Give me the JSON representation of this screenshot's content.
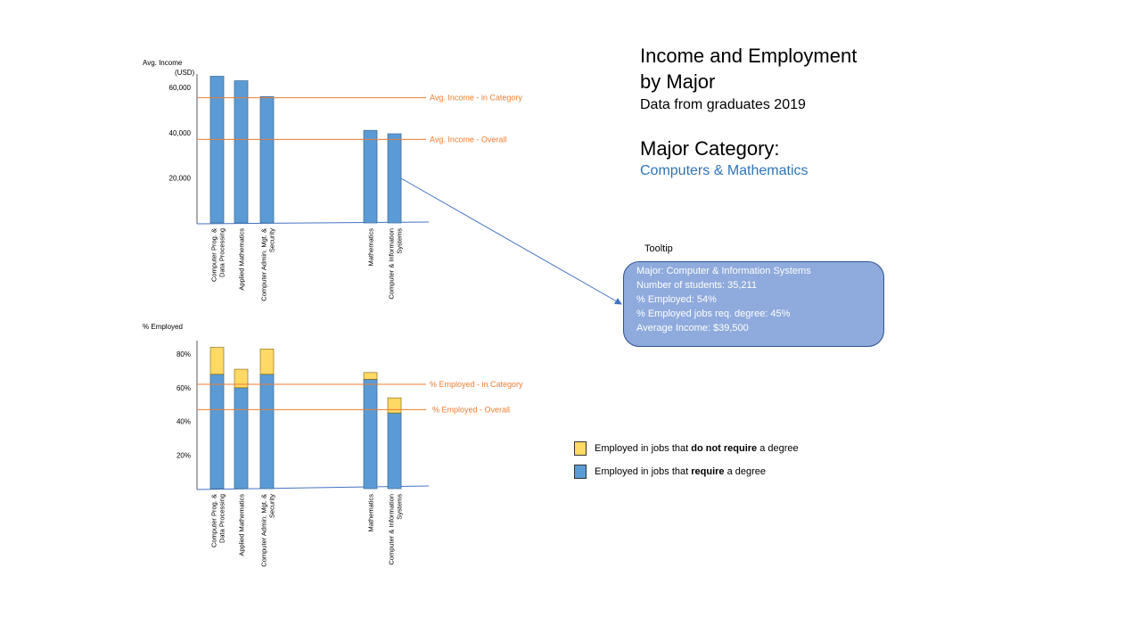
{
  "title": {
    "line1": "Income and Employment",
    "line2": "by Major",
    "subtitle": "Data from graduates 2019",
    "category_label": "Major Category:",
    "category_value": "Computers & Mathematics"
  },
  "colors": {
    "bar_blue": "#5b9bd5",
    "bar_yellow": "#ffd966",
    "ref_line_orange": "#ed7d31",
    "category_text": "#2e75b6",
    "tooltip_bg": "#8faadc"
  },
  "tooltip": {
    "caption": "Tooltip",
    "major": "Major: Computer  & Information Systems",
    "students": "Number  of students: 35,211",
    "employed": "% Employed:  54%",
    "employed_degree": "% Employed  jobs req. degree:  45%",
    "income": "Average Income: $39,500"
  },
  "legend": {
    "no_degree_prefix": "Employed  in jobs that ",
    "no_degree_bold": "do not require",
    "no_degree_suffix": " a degree",
    "degree_prefix": "Employed  in jobs that ",
    "degree_bold": "require",
    "degree_suffix": " a degree"
  },
  "chart_data": [
    {
      "type": "bar",
      "ylabel": "Avg. Income (USD)",
      "categories": [
        "Computer Prog. & Data Processing",
        "Applied Mathematics",
        "Computer Admin.  Mgt. & Security",
        "Mathematics",
        "Computer & Information Systems"
      ],
      "series": [
        {
          "values": [
            65000,
            63000,
            56000,
            41000,
            39500
          ]
        }
      ],
      "yticks": [
        "20,000",
        "40,000",
        "60,000"
      ],
      "ylim": [
        0,
        66000
      ],
      "reference_lines": [
        {
          "label": "Avg. Income - in Category",
          "value": 55500
        },
        {
          "label": "Avg. Income - Overall",
          "value": 37000
        }
      ]
    },
    {
      "type": "bar",
      "stacked": true,
      "ylabel": "% Employed",
      "categories": [
        "Computer Prog. & Data Processing",
        "Applied Mathematics",
        "Computer Admin.  Mgt. & Security",
        "Mathematics",
        "Computer & Information Systems"
      ],
      "series": [
        {
          "name": "Employed  in jobs that require a degree",
          "values": [
            68,
            60,
            68,
            65,
            45
          ]
        },
        {
          "name": "Employed  in jobs that do not require a degree",
          "values": [
            16,
            11,
            15,
            4,
            9
          ]
        }
      ],
      "yticks": [
        "20%",
        "40%",
        "60%",
        "80%"
      ],
      "ylim": [
        0,
        88
      ],
      "reference_lines": [
        {
          "label": "% Employed - in Category",
          "value": 62
        },
        {
          "label": "% Employed - Overall",
          "value": 47
        }
      ]
    }
  ]
}
